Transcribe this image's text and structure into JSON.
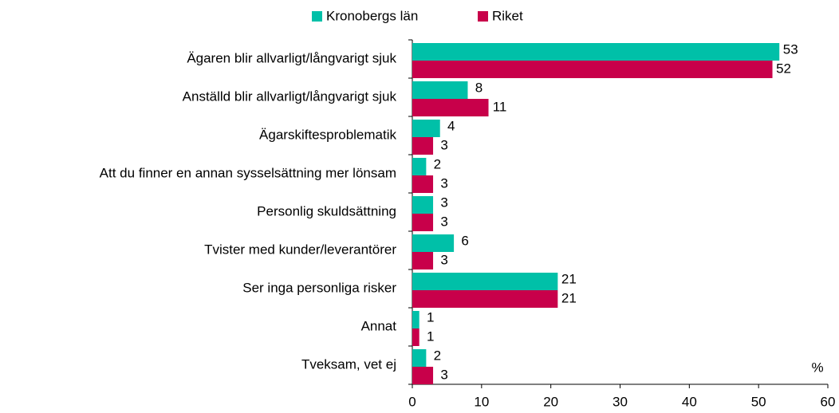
{
  "chart_data": {
    "type": "bar",
    "orientation": "horizontal",
    "categories": [
      "Ägaren blir allvarligt/långvarigt sjuk",
      "Anställd blir allvarligt/långvarigt sjuk",
      "Ägarskiftesproblematik",
      "Att du finner en annan sysselsättning mer lönsam",
      "Personlig skuldsättning",
      "Tvister med kunder/leverantörer",
      "Ser inga personliga risker",
      "Annat",
      "Tveksam, vet ej"
    ],
    "series": [
      {
        "name": "Kronobergs län",
        "color": "#00c0a8",
        "values": [
          53,
          8,
          4,
          2,
          3,
          6,
          21,
          1,
          2
        ]
      },
      {
        "name": "Riket",
        "color": "#c8004a",
        "values": [
          52,
          11,
          3,
          3,
          3,
          3,
          21,
          1,
          3
        ]
      }
    ],
    "xlim": [
      0,
      60
    ],
    "xticks": [
      0,
      10,
      20,
      30,
      40,
      50,
      60
    ],
    "x_unit_label": "%",
    "legend": "top"
  }
}
